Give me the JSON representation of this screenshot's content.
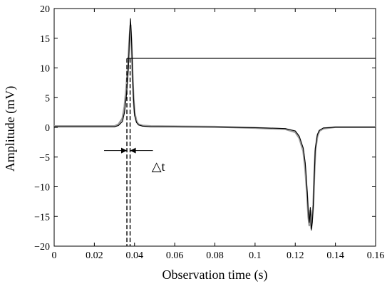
{
  "chart_data": {
    "type": "line",
    "xlabel": "Observation time (s)",
    "ylabel": "Amplitude (mV)",
    "xlim": [
      0,
      0.16
    ],
    "ylim": [
      -20,
      20
    ],
    "xticks": [
      0,
      0.02,
      0.04,
      0.06,
      0.08,
      0.1,
      0.12,
      0.14,
      0.16
    ],
    "xtick_labels": [
      "0",
      "0.02",
      "0.04",
      "0.06",
      "0.08",
      "0.1",
      "0.12",
      "0.14",
      "0.16"
    ],
    "yticks": [
      -20,
      -15,
      -10,
      -5,
      0,
      5,
      10,
      15,
      20
    ],
    "ytick_labels": [
      "−20",
      "−15",
      "−10",
      "−5",
      "0",
      "5",
      "10",
      "15",
      "20"
    ],
    "grid": false,
    "series": [
      {
        "color": "#999999",
        "x": [
          0,
          0.03,
          0.032,
          0.034,
          0.035,
          0.036,
          0.037,
          0.0375,
          0.038,
          0.0385,
          0.039,
          0.0395,
          0.04,
          0.041,
          0.042,
          0.044,
          0.048,
          0.06,
          0.08,
          0.1,
          0.115,
          0.12,
          0.122,
          0.124,
          0.125,
          0.126,
          0.1265,
          0.127,
          0.1275,
          0.128,
          0.1285,
          0.129,
          0.1295,
          0.13,
          0.131,
          0.132,
          0.134,
          0.14,
          0.16
        ],
        "y": [
          0.2,
          0.2,
          0.5,
          1.5,
          3.5,
          7,
          12,
          15,
          17.2,
          14,
          9,
          5,
          2.5,
          1,
          0.5,
          0.3,
          0.2,
          0.15,
          0.1,
          -0.1,
          -0.3,
          -0.8,
          -1.8,
          -4,
          -7,
          -12,
          -15,
          -16.5,
          -14,
          -17,
          -15,
          -13,
          -8,
          -4,
          -1.5,
          -0.6,
          -0.2,
          0.05,
          0.05
        ]
      },
      {
        "color": "#000000",
        "x": [
          0,
          0.03,
          0.032,
          0.034,
          0.035,
          0.036,
          0.037,
          0.0375,
          0.038,
          0.0385,
          0.039,
          0.0395,
          0.04,
          0.041,
          0.042,
          0.044,
          0.048,
          0.06,
          0.08,
          0.1,
          0.115,
          0.12,
          0.122,
          0.124,
          0.125,
          0.126,
          0.1265,
          0.127,
          0.1275,
          0.128,
          0.1285,
          0.129,
          0.1295,
          0.13,
          0.131,
          0.132,
          0.134,
          0.14,
          0.16
        ],
        "y": [
          0.1,
          0.1,
          0.3,
          1,
          2.5,
          5.5,
          10,
          15.5,
          18.3,
          15,
          9.5,
          5,
          2,
          0.8,
          0.4,
          0.2,
          0.1,
          0.1,
          0.05,
          -0.05,
          -0.2,
          -0.6,
          -1.5,
          -3.5,
          -6,
          -11,
          -14.5,
          -16,
          -13.5,
          -17.3,
          -16,
          -13,
          -8,
          -3.5,
          -1.2,
          -0.5,
          -0.1,
          0,
          0
        ]
      },
      {
        "color": "#000000",
        "x": [
          0.0362,
          0.16
        ],
        "y": [
          11.6,
          11.6
        ]
      }
    ],
    "annotations": [
      {
        "text": "△t",
        "x": 0.0485,
        "y": -6.6
      }
    ],
    "vertical_markers": [
      0.0362,
      0.0378
    ],
    "interval_arrow": {
      "from": 0.0362,
      "to": 0.0378,
      "y": -3.9
    }
  }
}
